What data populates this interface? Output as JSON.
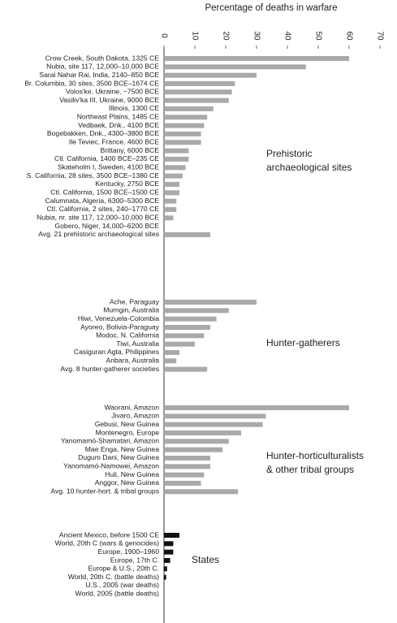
{
  "chart_data": {
    "type": "bar",
    "orientation": "horizontal",
    "title": "Percentage of deaths in warfare",
    "xlim": [
      0,
      70
    ],
    "xticks": [
      0,
      10,
      20,
      30,
      40,
      50,
      60,
      70
    ],
    "groups": [
      {
        "label": [
          "Prehistoric",
          "archaeological sites"
        ],
        "color": "#a9a9a9",
        "categories": [
          "Crow Creek, South Dakota, 1325 CE",
          "Nubia, site 117, 12,000–10,000 BCE",
          "Sarai Nahar Rai, India, 2140–850 BCE",
          "Br. Columbia, 30 sites, 3500 BCE–1674 CE",
          "Volos'ke, Ukraine, ~7500 BCE",
          "Vasiliv'ka III, Ukraine, 9000 BCE",
          "Illinois, 1300 CE",
          "Northeast Plains, 1485 CE",
          "Vedbaek, Dnk., 4100 BCE",
          "Bogebakken, Dnk., 4300–3800 BCE",
          "Ile Teviec, France, 4600 BCE",
          "Brittany, 6000 BCE",
          "Ctl. California, 1400 BCE–235 CE",
          "Skateholm I, Sweden, 4100 BCE",
          "S. California, 28 sites, 3500 BCE–1380 CE",
          "Kentucky, 2750 BCE",
          "Ctl. California, 1500 BCE–1500 CE",
          "Calumnata, Algeria, 6300–5300 BCE",
          "Ctl. California, 2 sites, 240–1770 CE",
          "Nubia, nr. site 117, 12,000–10,000 BCE",
          "Gobero, Niger, 14,000–6200 BCE",
          "Avg. 21 prehistoric archaeological sites"
        ],
        "values": [
          60,
          46,
          30,
          23,
          22,
          21,
          16,
          14,
          13,
          12,
          12,
          8,
          8,
          7,
          6,
          5,
          5,
          4,
          4,
          3,
          0,
          15
        ]
      },
      {
        "label": [
          "Hunter-gatherers"
        ],
        "color": "#a9a9a9",
        "categories": [
          "Ache, Paraguay",
          "Murngin, Australia",
          "Hiwi, Venezuela-Colombia",
          "Ayoreo, Bolivia-Paraguay",
          "Modoc, N. California",
          "Tiwi, Australia",
          "Casiguran Agta, Philippines",
          "Anbara, Australia",
          "Avg. 8 hunter-gatherer societies"
        ],
        "values": [
          30,
          21,
          17,
          15,
          13,
          10,
          5,
          4,
          14
        ]
      },
      {
        "label": [
          "Hunter-horticulturalists",
          "& other tribal groups"
        ],
        "color": "#a9a9a9",
        "categories": [
          "Waorani, Amazon",
          "Jivaro, Amazon",
          "Gebusi, New Guinea",
          "Montenegro, Europe",
          "Yanomamö-Shamatari, Amazon",
          "Mae Enga, New Guinea",
          "Dugum Dani, New Guinea",
          "Yanomamö-Namowei, Amazon",
          "Huli, New Guinea",
          "Anggor, New Guinea",
          "Avg. 10 hunter-hort. & tribal groups"
        ],
        "values": [
          60,
          33,
          32,
          25,
          21,
          19,
          15,
          15,
          13,
          12,
          24
        ]
      },
      {
        "label": [
          "States"
        ],
        "color": "#111111",
        "categories": [
          "Ancient Mexico, before 1500 CE",
          "World, 20th C (wars & genocides)",
          "Europe, 1900–1960",
          "Europe, 17th C.",
          "Europe & U.S., 20th C.",
          "World, 20th C. (battle deaths)",
          "U.S., 2005 (war deaths)",
          "World, 2005 (battle deaths)"
        ],
        "values": [
          5,
          3,
          3,
          2,
          1,
          0.7,
          0,
          0
        ]
      }
    ]
  }
}
